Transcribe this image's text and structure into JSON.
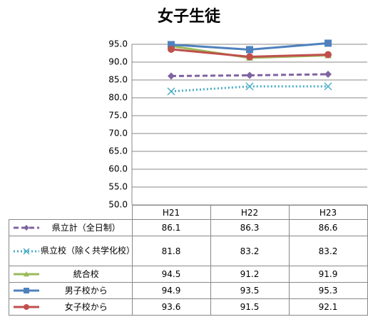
{
  "chart_data": {
    "type": "line",
    "title": "女子生徒",
    "categories": [
      "H21",
      "H22",
      "H23"
    ],
    "ylim": [
      50,
      95
    ],
    "yticks": [
      {
        "value": 50,
        "label": "50.0"
      },
      {
        "value": 55,
        "label": "55.0"
      },
      {
        "value": 60,
        "label": "60.0"
      },
      {
        "value": 65,
        "label": "65.0"
      },
      {
        "value": 70,
        "label": "70.0"
      },
      {
        "value": 75,
        "label": "75.0"
      },
      {
        "value": 80,
        "label": "80.0"
      },
      {
        "value": 85,
        "label": "85.0"
      },
      {
        "value": 90,
        "label": "90.0"
      },
      {
        "value": 95,
        "label": "95.0"
      }
    ],
    "grid": true,
    "series": [
      {
        "name": "県立計（全日制）",
        "color": "#8064a2",
        "marker": "diamond",
        "dash": "dashed",
        "values": [
          86.1,
          86.3,
          86.6
        ]
      },
      {
        "name": "県立校（除く共学化校）",
        "color": "#4bacc6",
        "marker": "x",
        "dash": "dotted",
        "values": [
          81.8,
          83.2,
          83.2
        ]
      },
      {
        "name": "統合校",
        "color": "#9bbb59",
        "marker": "triangle",
        "dash": "solid",
        "values": [
          94.5,
          91.2,
          91.9
        ]
      },
      {
        "name": "男子校から",
        "color": "#4f81bd",
        "marker": "square",
        "dash": "solid",
        "values": [
          94.9,
          93.5,
          95.3
        ]
      },
      {
        "name": "女子校から",
        "color": "#c0504d",
        "marker": "circle",
        "dash": "solid",
        "values": [
          93.6,
          91.5,
          92.1
        ]
      }
    ]
  }
}
